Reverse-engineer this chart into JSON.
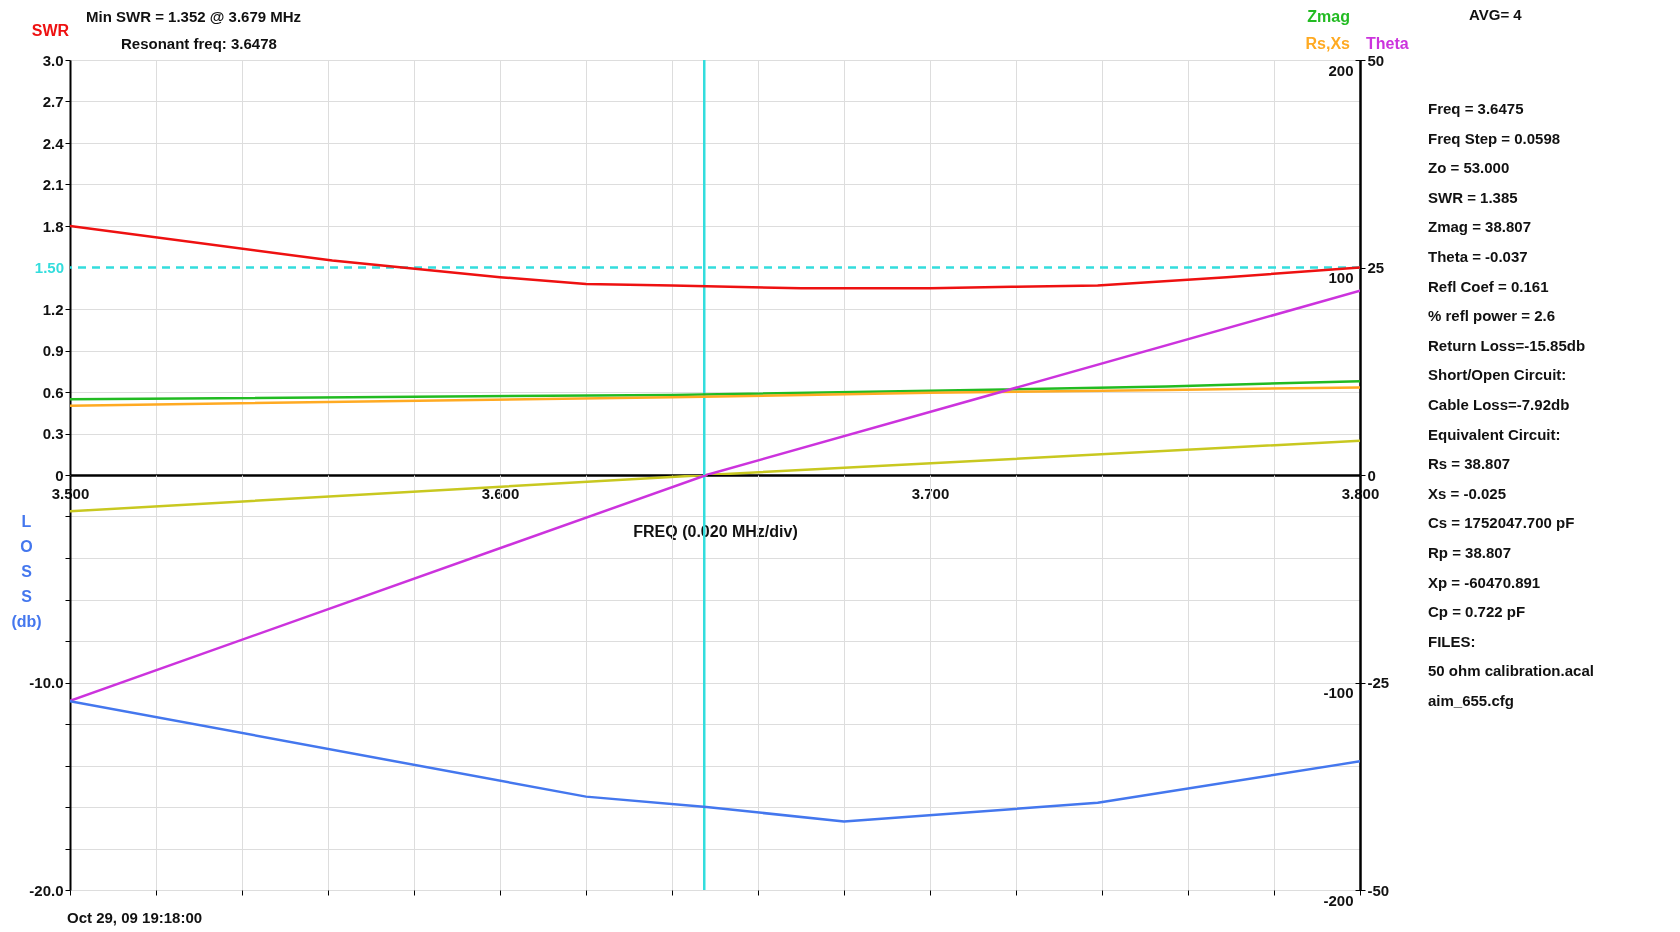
{
  "chart_data": [
    {
      "type": "line",
      "xlabel": "FREQ (0.020 MHz/div)",
      "ylabel": "SWR",
      "xlim": [
        3.5,
        3.8
      ],
      "xticks": [
        {
          "value": 3.5,
          "label": "3.500"
        },
        {
          "value": 3.52,
          "label": null
        },
        {
          "value": 3.54,
          "label": null
        },
        {
          "value": 3.56,
          "label": null
        },
        {
          "value": 3.58,
          "label": null
        },
        {
          "value": 3.6,
          "label": "3.600"
        },
        {
          "value": 3.62,
          "label": null
        },
        {
          "value": 3.64,
          "label": null
        },
        {
          "value": 3.66,
          "label": null
        },
        {
          "value": 3.68,
          "label": null
        },
        {
          "value": 3.7,
          "label": "3.700"
        },
        {
          "value": 3.72,
          "label": null
        },
        {
          "value": 3.74,
          "label": null
        },
        {
          "value": 3.76,
          "label": null
        },
        {
          "value": 3.78,
          "label": null
        },
        {
          "value": 3.8,
          "label": "3.800"
        }
      ],
      "ylim": [
        0,
        3
      ],
      "yticks": [
        0,
        0.3,
        0.6,
        0.9,
        1.2,
        1.8,
        2.1,
        2.4,
        2.7,
        {
          "value": 3,
          "label": "3.0"
        }
      ],
      "y2lim": [
        0,
        200
      ],
      "y2ticks": [
        100,
        200
      ],
      "y3lim": [
        0,
        50
      ],
      "y3ticks": [
        0,
        25,
        50
      ],
      "grid": true,
      "legend": "top right",
      "marker": "none",
      "line_style": "solid",
      "series": [
        {
          "color": "#ee1111",
          "x": [
            3.5,
            3.561,
            3.6,
            3.62,
            3.64,
            3.67,
            3.7,
            3.719,
            3.739,
            3.769,
            3.8
          ],
          "values": [
            1.8,
            1.55,
            1.43,
            1.38,
            1.37,
            1.35,
            1.35,
            1.36,
            1.37,
            1.43,
            1.5
          ]
        },
        {
          "name": "Zmag",
          "color": "#22bb22",
          "axis": "y2",
          "x": [
            3.5,
            3.64,
            3.7,
            3.755,
            3.8
          ],
          "values": [
            36.5,
            38.6,
            40.6,
            42.7,
            45.2
          ]
        },
        {
          "name": "Rs,Xs",
          "color": "#ffaa22",
          "axis": "y2",
          "x": [
            3.5,
            3.64,
            3.7,
            3.755,
            3.8
          ],
          "values": [
            33.4,
            37.5,
            39.6,
            41,
            42.2
          ]
        },
        {
          "color": "#c8c820",
          "axis": "y2",
          "x": [
            3.648,
            3.8
          ],
          "values": [
            0,
            16.5
          ]
        },
        {
          "name": "Theta",
          "color": "#cc33dd",
          "axis": "y3",
          "x": [
            3.648,
            3.8
          ],
          "values": [
            0,
            22.2
          ]
        }
      ],
      "ref_lines": [
        {
          "axis": "x",
          "value": 3.6475,
          "color": "#33dddd",
          "line_style": "solid"
        },
        {
          "axis": "y",
          "value": 1.5,
          "label": "1.50",
          "color": "#33dddd",
          "line_style": "dashed"
        }
      ],
      "annotations": [
        "Min SWR = 1.352 @ 3.679 MHz",
        "Resonant freq: 3.6478",
        "AVG= 4",
        "Freq = 3.6475",
        "Freq Step = 0.0598",
        "Zo = 53.000",
        "SWR = 1.385",
        "Zmag = 38.807",
        "Theta = -0.037",
        "Refl Coef = 0.161",
        "% refl power = 2.6",
        "Return Loss=-15.85db",
        "Short/Open Circuit:",
        "Cable Loss=-7.92db",
        "Equivalent Circuit:",
        "Rs = 38.807",
        "Xs = -0.025",
        "Cs = 1752047.700 pF",
        "Rp = 38.807",
        "Xp = -60470.891",
        "Cp = 0.722 pF",
        "FILES:",
        "50 ohm calibration.acal",
        "aim_655.cfg",
        "Oct 29, 09 19:18:00"
      ]
    },
    {
      "type": "line",
      "ylabel": "L O S S (db)",
      "tick_labels": "y",
      "xlim": [
        3.5,
        3.8
      ],
      "xticks": [
        3.5,
        3.52,
        3.54,
        3.56,
        3.58,
        3.6,
        3.62,
        3.64,
        3.66,
        3.68,
        3.7,
        3.72,
        3.74,
        3.76,
        3.78,
        3.8
      ],
      "ylim": [
        -20,
        0
      ],
      "yticks": [
        {
          "value": -20,
          "label": "-20.0"
        },
        {
          "value": -18,
          "label": null
        },
        {
          "value": -16,
          "label": null
        },
        {
          "value": -14,
          "label": null
        },
        {
          "value": -12,
          "label": null
        },
        {
          "value": -10,
          "label": "-10.0"
        },
        {
          "value": -8,
          "label": null
        },
        {
          "value": -6,
          "label": null
        },
        {
          "value": -4,
          "label": null
        },
        {
          "value": -2,
          "label": null
        }
      ],
      "y2lim": [
        -200,
        0
      ],
      "y2ticks": [
        -200,
        -100
      ],
      "y3lim": [
        -50,
        0
      ],
      "y3ticks": [
        -50,
        -25
      ],
      "grid": true,
      "marker": "none",
      "line_style": "solid",
      "series": [
        {
          "color": "#c8c820",
          "axis": "y2",
          "x": [
            3.5,
            3.648
          ],
          "values": [
            -17.5,
            0
          ]
        },
        {
          "color": "#cc33dd",
          "axis": "y3",
          "x": [
            3.5,
            3.648
          ],
          "values": [
            -27.2,
            0
          ]
        },
        {
          "color": "#4477ee",
          "x": [
            3.5,
            3.62,
            3.648,
            3.68,
            3.739,
            3.8
          ],
          "values": [
            -10.9,
            -15.5,
            -16,
            -16.7,
            -15.8,
            -13.8
          ]
        }
      ],
      "ref_lines": [
        {
          "axis": "x",
          "value": 3.6475,
          "color": "#33dddd",
          "line_style": "solid"
        }
      ]
    }
  ]
}
